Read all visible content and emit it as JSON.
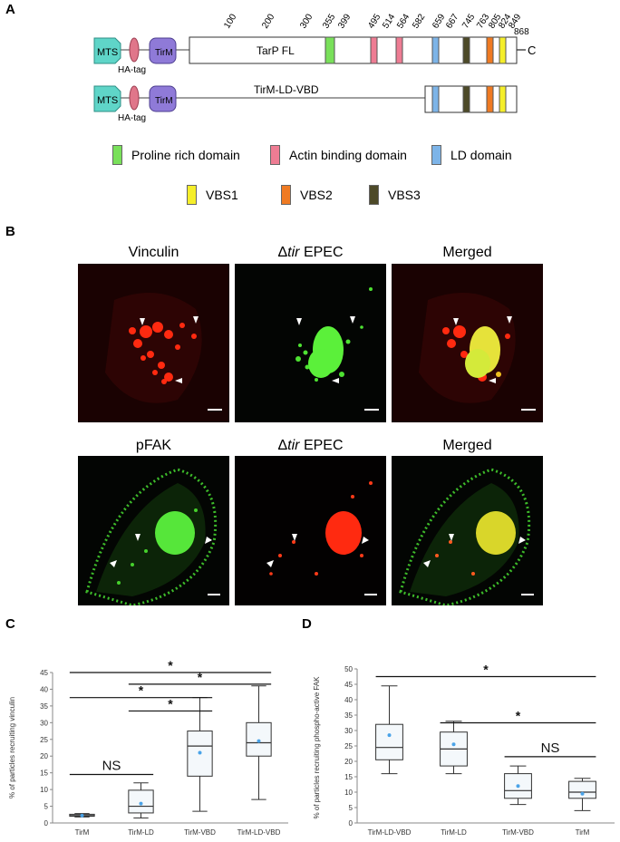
{
  "panel_labels": {
    "a": "A",
    "b": "B",
    "c": "C",
    "d": "D"
  },
  "schematic": {
    "row1": {
      "mts": "MTS",
      "ha": "HA-tag",
      "tirm": "TirM",
      "protein": "TarP FL",
      "c_term": "C"
    },
    "row2": {
      "mts": "MTS",
      "ha": "HA-tag",
      "tirm": "TirM",
      "protein": "TirM-LD-VBD"
    },
    "positions": [
      "100",
      "200",
      "300",
      "355",
      "399",
      "495",
      "514",
      "564",
      "582",
      "659",
      "667",
      "745",
      "763",
      "805",
      "824",
      "849",
      "868"
    ]
  },
  "legend": {
    "proline": "Proline rich domain",
    "actin": "Actin binding domain",
    "ld": "LD domain",
    "vbs1": "VBS1",
    "vbs2": "VBS2",
    "vbs3": "VBS3"
  },
  "colors": {
    "mts": "#5fd5c8",
    "ha": "#e0768a",
    "tirm": "#8f7ad8",
    "proline": "#79e05a",
    "actin": "#ee7c93",
    "ld": "#7db4e8",
    "vbs1": "#f5ee2a",
    "vbs2": "#ef7a22",
    "vbs3": "#4d4a28",
    "box_fill": "#f4f8fb"
  },
  "micrographs": {
    "row1": {
      "c1": "Vinculin",
      "c2_italic": "tir",
      "c2_suffix": " EPEC",
      "c3": "Merged"
    },
    "row2": {
      "c1": "pFAK",
      "c2_italic": "tir",
      "c2_suffix": " EPEC",
      "c3": "Merged"
    },
    "delta": "Δ"
  },
  "chart_data": [
    {
      "type": "box",
      "panel": "C",
      "ylabel": "% of particles recruiting vinculin",
      "ylim": [
        0,
        45
      ],
      "yticks": [
        0,
        5,
        10,
        15,
        20,
        25,
        30,
        35,
        40,
        45
      ],
      "categories": [
        "TirM",
        "TirM-LD",
        "TirM-VBD",
        "TirM-LD-VBD"
      ],
      "boxes": [
        {
          "min": 1.8,
          "q1": 2.0,
          "median": 2.2,
          "q3": 2.6,
          "max": 2.8,
          "mean": 2.2
        },
        {
          "min": 1.5,
          "q1": 3.0,
          "median": 5.0,
          "q3": 9.8,
          "max": 12.0,
          "mean": 5.8
        },
        {
          "min": 3.5,
          "q1": 14.0,
          "median": 23.0,
          "q3": 27.5,
          "max": 37.5,
          "mean": 21.0
        },
        {
          "min": 7.0,
          "q1": 20.0,
          "median": 24.0,
          "q3": 30.0,
          "max": 41.0,
          "mean": 24.5
        }
      ],
      "annotations": [
        {
          "text": "NS",
          "from": 0,
          "to": 1,
          "y": 14.5
        },
        {
          "text": "*",
          "from": 1,
          "to": 2,
          "y": 33.5
        },
        {
          "text": "*",
          "from": 0,
          "to": 2,
          "y": 37.5
        },
        {
          "text": "*",
          "from": 1,
          "to": 3,
          "y": 41.5
        },
        {
          "text": "*",
          "from": 0,
          "to": 3,
          "y": 45.0
        }
      ]
    },
    {
      "type": "box",
      "panel": "D",
      "ylabel": "% of particles recruiting phospho-active FAK",
      "ylim": [
        0,
        50
      ],
      "yticks": [
        0,
        5,
        10,
        15,
        20,
        25,
        30,
        35,
        40,
        45,
        50
      ],
      "categories": [
        "TirM-LD-VBD",
        "TirM-LD",
        "TirM-VBD",
        "TirM"
      ],
      "boxes": [
        {
          "min": 16.0,
          "q1": 20.5,
          "median": 24.5,
          "q3": 32.0,
          "max": 44.5,
          "mean": 28.5
        },
        {
          "min": 16.0,
          "q1": 18.5,
          "median": 24.0,
          "q3": 29.5,
          "max": 33.0,
          "mean": 25.5
        },
        {
          "min": 6.0,
          "q1": 8.0,
          "median": 10.5,
          "q3": 16.0,
          "max": 18.5,
          "mean": 12.0
        },
        {
          "min": 4.0,
          "q1": 8.0,
          "median": 10.0,
          "q3": 13.5,
          "max": 14.5,
          "mean": 9.5
        }
      ],
      "annotations": [
        {
          "text": "NS",
          "from": 2,
          "to": 3,
          "y": 21.5
        },
        {
          "text": "*",
          "from": 1,
          "to": 3,
          "y": 32.5
        },
        {
          "text": "*",
          "from": 0,
          "to": 3,
          "y": 47.5
        }
      ]
    }
  ]
}
